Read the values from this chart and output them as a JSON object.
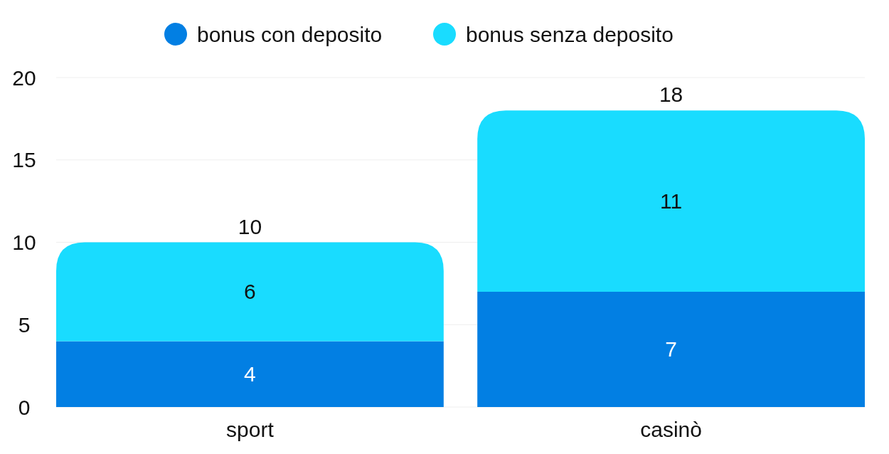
{
  "chart_data": {
    "type": "bar",
    "stacked": true,
    "categories": [
      "sport",
      "casinò"
    ],
    "series": [
      {
        "name": "bonus con deposito",
        "color": "#027fe3",
        "values": [
          4,
          7
        ]
      },
      {
        "name": "bonus senza deposito",
        "color": "#19dcff",
        "values": [
          6,
          11
        ]
      }
    ],
    "ylim": [
      0,
      20
    ],
    "yticks": [
      0,
      5,
      10,
      15,
      20
    ],
    "grid": "y",
    "legend": "top",
    "data_labels": true,
    "totals": [
      "10",
      "18"
    ]
  }
}
